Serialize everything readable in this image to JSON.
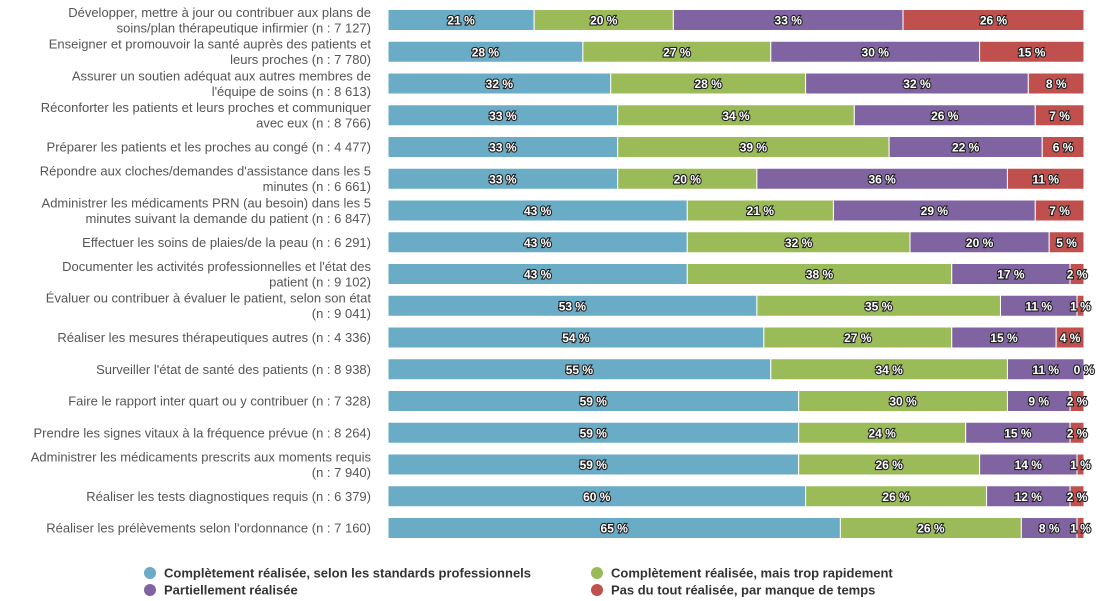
{
  "chart_data": {
    "type": "bar",
    "orientation": "horizontal",
    "stacked": true,
    "percent_stacked": true,
    "title": "",
    "xlabel": "",
    "ylabel": "",
    "xlim": [
      0,
      100
    ],
    "grid": false,
    "legend_position": "bottom",
    "categories": [
      [
        "Développer, mettre à jour ou contribuer aux plans de",
        "soins/plan thérapeutique infirmier (n : 7 127)"
      ],
      [
        "Enseigner et promouvoir la santé auprès des patients et",
        "leurs proches (n : 7 780)"
      ],
      [
        "Assurer un soutien adéquat aux autres membres de",
        "l'équipe de soins (n : 8 613)"
      ],
      [
        "Réconforter les patients et leurs proches et communiquer",
        "avec eux (n : 8 766)"
      ],
      [
        "Préparer les patients et les proches au congé (n : 4 477)"
      ],
      [
        "Répondre aux cloches/demandes d'assistance dans les 5",
        "minutes (n : 6 661)"
      ],
      [
        "Administrer les médicaments PRN (au besoin) dans les 5",
        "minutes suivant la demande du patient (n : 6 847)"
      ],
      [
        "Effectuer les soins de plaies/de la peau (n : 6 291)"
      ],
      [
        "Documenter les activités professionnelles et l'état des",
        "patient (n : 9 102)"
      ],
      [
        "Évaluer ou contribuer à évaluer le patient, selon son état",
        "(n : 9 041)"
      ],
      [
        "Réaliser les mesures thérapeutiques autres (n : 4 336)"
      ],
      [
        "Surveiller l'état de santé des patients (n : 8 938)"
      ],
      [
        "Faire le rapport inter quart ou y contribuer (n : 7 328)"
      ],
      [
        "Prendre les signes vitaux à la fréquence prévue (n : 8 264)"
      ],
      [
        "Administrer les médicaments prescrits aux moments requis",
        "(n : 7 940)"
      ],
      [
        "Réaliser les tests diagnostiques requis (n : 6 379)"
      ],
      [
        "Réaliser les prélèvements selon l'ordonnance (n : 7 160)"
      ]
    ],
    "series": [
      {
        "name": "Complètement réalisée, selon les standards professionnels",
        "color": "#6aabc6",
        "values": [
          21,
          28,
          32,
          33,
          33,
          33,
          43,
          43,
          43,
          53,
          54,
          55,
          59,
          59,
          59,
          60,
          65
        ]
      },
      {
        "name": "Complètement réalisée, mais trop rapidement",
        "color": "#9bbb59",
        "values": [
          20,
          27,
          28,
          34,
          39,
          20,
          21,
          32,
          38,
          35,
          27,
          34,
          30,
          24,
          26,
          26,
          26
        ]
      },
      {
        "name": "Partiellement réalisée",
        "color": "#8064a2",
        "values": [
          33,
          30,
          32,
          26,
          22,
          36,
          29,
          20,
          17,
          11,
          15,
          11,
          9,
          15,
          14,
          12,
          8
        ]
      },
      {
        "name": "Pas du tout réalisée, par manque de temps",
        "color": "#c0504d",
        "values": [
          26,
          15,
          8,
          7,
          6,
          11,
          7,
          5,
          2,
          1,
          4,
          0,
          2,
          2,
          1,
          2,
          1
        ]
      }
    ],
    "value_suffix": " %"
  }
}
